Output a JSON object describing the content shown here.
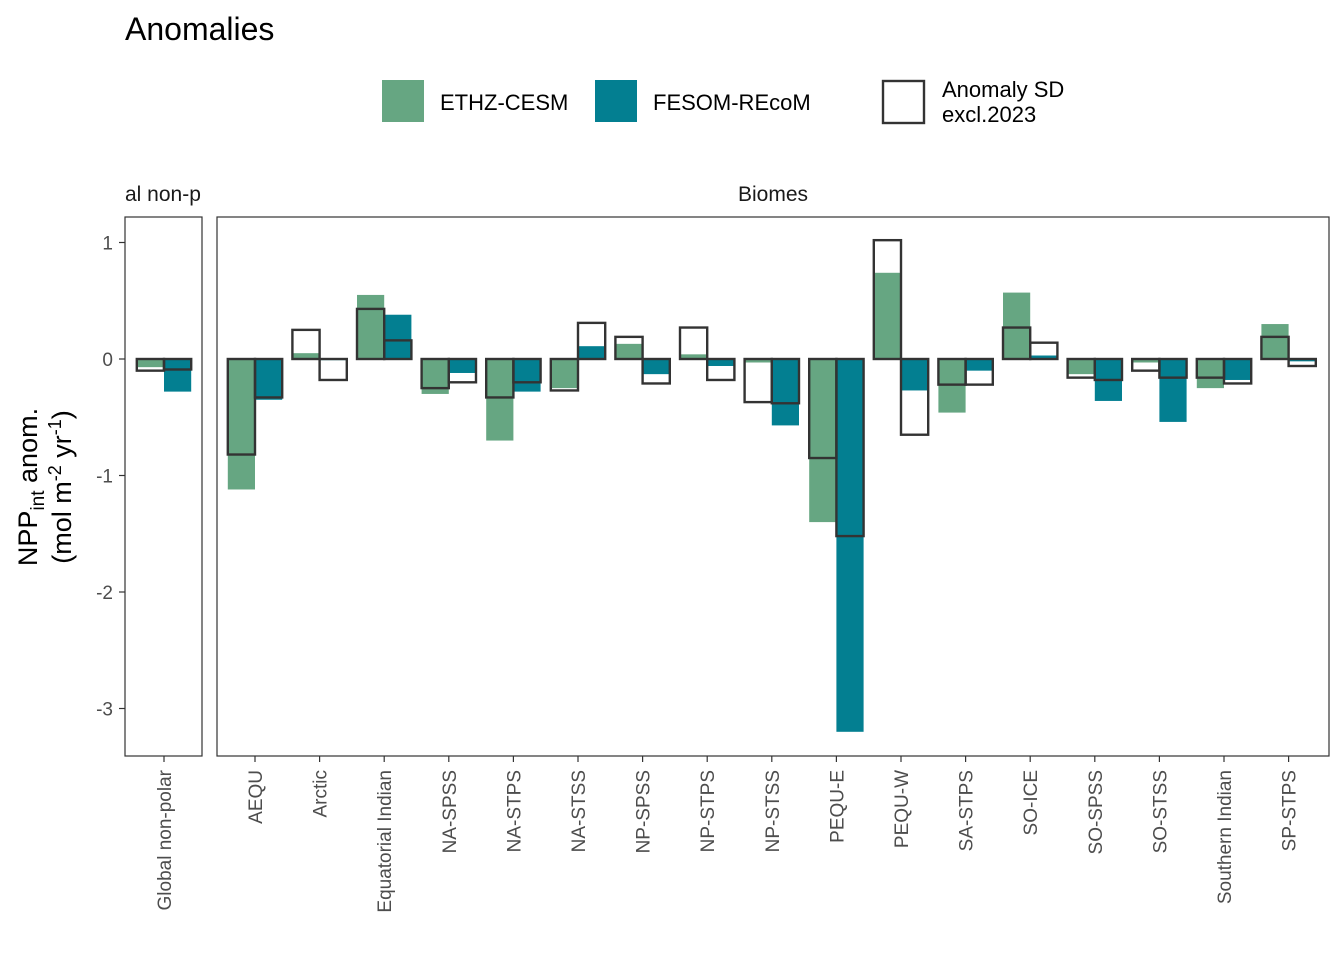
{
  "chart_data": {
    "type": "bar",
    "title": "Anomalies",
    "ylabel_line1": "NPP",
    "ylabel_sub": "int",
    "ylabel_after": " anom.",
    "ylabel_line2_parts": [
      "(mol m",
      "-2",
      " yr",
      "-1",
      ")"
    ],
    "yticks": [
      1,
      0,
      -1,
      -2,
      -3
    ],
    "ylim": [
      -3.45,
      1.15
    ],
    "legend": {
      "placement": "top",
      "entries": [
        {
          "label": "ETHZ-CESM",
          "color": "#66a682"
        },
        {
          "label": "FESOM-REcoM",
          "color": "#037f91"
        }
      ],
      "sd_label_line1": "Anomaly SD",
      "sd_label_line2": "excl.2023"
    },
    "series_names": [
      "ETHZ-CESM",
      "FESOM-REcoM"
    ],
    "colors": {
      "ETHZ-CESM": "#66a682",
      "FESOM-REcoM": "#037f91",
      "sd_outline": "#333333"
    },
    "panels": [
      {
        "strip": "Global non-polar",
        "strip_visible": "al non-p",
        "categories": [
          "Global non-polar"
        ],
        "ethz": [
          -0.07
        ],
        "fesom": [
          -0.28
        ],
        "sd_ethz": [
          -0.1
        ],
        "sd_fesom": [
          -0.09
        ]
      },
      {
        "strip": "Biomes",
        "categories": [
          "AEQU",
          "Arctic",
          "Equatorial Indian",
          "NA-SPSS",
          "NA-STPS",
          "NA-STSS",
          "NP-SPSS",
          "NP-STPS",
          "NP-STSS",
          "PEQU-E",
          "PEQU-W",
          "SA-STPS",
          "SO-ICE",
          "SO-SPSS",
          "SO-STSS",
          "Southern Indian",
          "SP-STPS"
        ],
        "ethz": [
          -1.12,
          0.05,
          0.55,
          -0.3,
          -0.7,
          -0.25,
          0.13,
          0.04,
          -0.03,
          -1.4,
          0.74,
          -0.46,
          0.57,
          -0.13,
          -0.03,
          -0.25,
          0.3
        ],
        "fesom": [
          -0.35,
          -0.01,
          0.38,
          -0.12,
          -0.28,
          0.11,
          -0.13,
          -0.06,
          -0.57,
          -3.2,
          -0.27,
          -0.1,
          0.03,
          -0.36,
          -0.54,
          -0.18,
          -0.02
        ],
        "sd_ethz": [
          -0.82,
          0.25,
          0.43,
          -0.25,
          -0.33,
          -0.27,
          0.19,
          0.27,
          -0.37,
          -0.85,
          1.02,
          -0.22,
          0.27,
          -0.16,
          -0.1,
          -0.16,
          0.19
        ],
        "sd_fesom": [
          -0.33,
          -0.18,
          0.16,
          -0.2,
          -0.2,
          0.31,
          -0.21,
          -0.18,
          -0.38,
          -1.52,
          -0.65,
          -0.22,
          0.14,
          -0.18,
          -0.16,
          -0.21,
          -0.06
        ]
      }
    ]
  }
}
